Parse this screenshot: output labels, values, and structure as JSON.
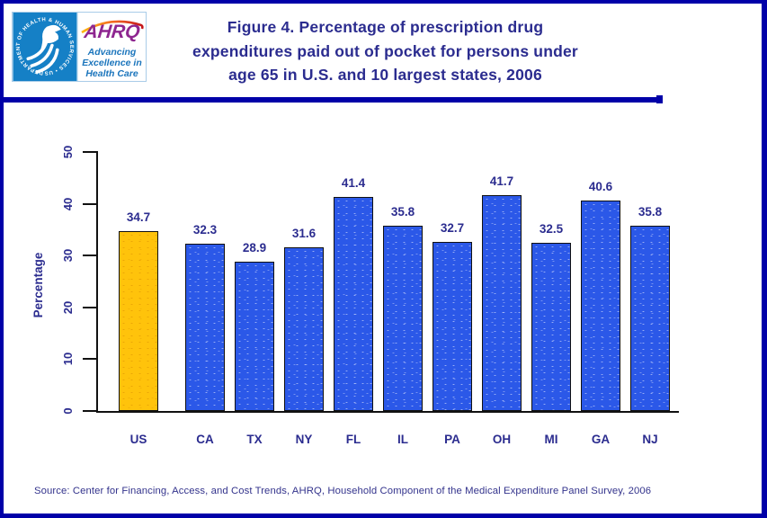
{
  "colors": {
    "page_border": "#0000A8",
    "divider": "#0000A8",
    "heading_text": "#2B2C8F",
    "ahrq_purple": "#8E2690",
    "ahrq_blue": "#1B75BC",
    "hhs_seal_blue": "#1580C6"
  },
  "header": {
    "logo": {
      "hhs_circle_text": "DEPARTMENT OF HEALTH & HUMAN SERVICES • USA",
      "ahrq_acronym": "AHRQ",
      "tagline_lines": [
        "Advancing",
        "Excellence in",
        "Health Care"
      ]
    },
    "title_lines": [
      "Figure 4. Percentage of prescription drug",
      "expenditures paid out of pocket for persons under",
      "age 65 in U.S. and 10 largest states, 2006"
    ]
  },
  "chart_data": {
    "type": "bar",
    "title": "Figure 4. Percentage of prescription drug expenditures paid out of pocket for persons under age 65 in U.S. and 10 largest states, 2006",
    "categories": [
      "US",
      "CA",
      "TX",
      "NY",
      "FL",
      "IL",
      "PA",
      "OH",
      "MI",
      "GA",
      "NJ"
    ],
    "values": [
      34.7,
      32.3,
      28.9,
      31.6,
      41.4,
      35.8,
      32.7,
      41.7,
      32.5,
      40.6,
      35.8
    ],
    "xlabel": "",
    "ylabel": "Percentage",
    "ylim": [
      0,
      50
    ],
    "yticks": [
      0,
      10,
      20,
      30,
      40,
      50
    ],
    "grid": false,
    "legend": false,
    "value_labels_decimals": 1,
    "highlight_category": "US",
    "bar_colors": {
      "highlight": "#FFC30B",
      "default": "#2B58E8"
    }
  },
  "footer": {
    "source": "Source: Center for Financing, Access, and Cost Trends, AHRQ, Household Component of the Medical Expenditure Panel Survey, 2006"
  }
}
